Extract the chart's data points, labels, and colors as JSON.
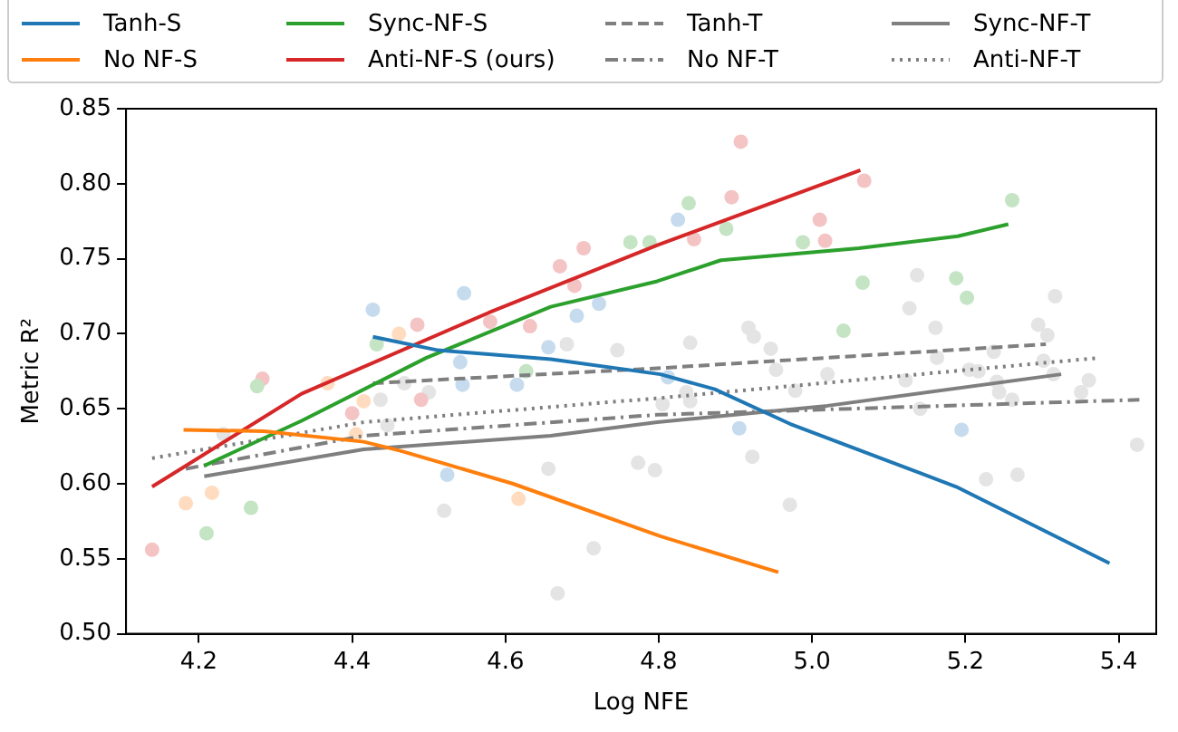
{
  "chart_data": {
    "type": "line",
    "xlabel": "Log NFE",
    "ylabel": "Metric R²",
    "xlim": [
      4.105,
      5.449
    ],
    "ylim": [
      0.5,
      0.85
    ],
    "xticks": [
      4.2,
      4.4,
      4.6,
      4.8,
      {
        "value": 5.0,
        "label": "5.0"
      },
      5.2,
      5.4
    ],
    "yticks": [
      {
        "value": 0.5,
        "label": "0.50"
      },
      {
        "value": 0.55,
        "label": "0.55"
      },
      {
        "value": 0.6,
        "label": "0.60"
      },
      {
        "value": 0.65,
        "label": "0.65"
      },
      {
        "value": 0.7,
        "label": "0.70"
      },
      {
        "value": 0.75,
        "label": "0.75"
      },
      {
        "value": 0.8,
        "label": "0.80"
      },
      {
        "value": 0.85,
        "label": "0.85"
      }
    ],
    "grid": false,
    "legend": "top",
    "series": [
      {
        "type": "scatter",
        "marker": "circle",
        "color": "#c6dcee",
        "x": [
          4.427,
          4.546,
          4.541,
          4.544,
          4.524,
          4.615,
          4.656,
          4.693,
          4.722,
          4.825,
          4.812,
          4.905,
          5.195
        ],
        "values": [
          0.716,
          0.727,
          0.681,
          0.666,
          0.606,
          0.666,
          0.691,
          0.712,
          0.72,
          0.776,
          0.671,
          0.637,
          0.636
        ]
      },
      {
        "type": "scatter",
        "marker": "circle",
        "color": "#ffdcc0",
        "x": [
          4.183,
          4.217,
          4.368,
          4.405,
          4.415,
          4.461,
          4.617
        ],
        "values": [
          0.587,
          0.594,
          0.667,
          0.633,
          0.655,
          0.7,
          0.59
        ]
      },
      {
        "type": "scatter",
        "marker": "circle",
        "color": "#c4e4c4",
        "x": [
          4.21,
          4.268,
          4.276,
          4.432,
          4.627,
          4.763,
          4.788,
          4.839,
          4.888,
          4.988,
          5.261,
          5.066,
          5.188,
          5.202,
          5.041
        ],
        "values": [
          0.567,
          0.584,
          0.665,
          0.693,
          0.675,
          0.761,
          0.761,
          0.787,
          0.77,
          0.761,
          0.789,
          0.734,
          0.737,
          0.724,
          0.702
        ]
      },
      {
        "type": "scatter",
        "marker": "circle",
        "color": "#f4c4c4",
        "x": [
          4.139,
          4.283,
          4.4,
          4.466,
          4.485,
          4.49,
          4.58,
          4.632,
          4.671,
          4.69,
          4.702,
          4.907,
          5.068,
          4.895,
          4.846,
          5.01,
          5.017
        ],
        "values": [
          0.556,
          0.67,
          0.647,
          null,
          0.706,
          0.656,
          0.708,
          0.705,
          0.745,
          0.732,
          0.757,
          0.828,
          0.802,
          0.791,
          0.763,
          0.776,
          0.762
        ]
      },
      {
        "type": "scatter",
        "marker": "circle",
        "color": "#e4e4e4",
        "x": [
          4.232,
          4.437,
          4.446,
          4.468,
          4.5,
          4.52,
          4.656,
          4.68,
          4.668,
          4.715,
          4.746,
          4.773,
          4.795,
          5.137,
          5.127,
          5.317,
          4.917,
          4.924,
          4.841,
          4.946,
          5.161,
          5.295,
          5.307,
          5.163,
          5.237,
          4.953,
          5.02,
          5.205,
          5.217,
          5.302,
          5.315,
          5.361,
          5.122,
          4.978,
          4.836,
          4.841,
          4.805,
          5.241,
          5.244,
          5.261,
          5.351,
          5.141,
          4.922,
          5.227,
          5.268,
          4.971,
          5.424
        ],
        "values": [
          0.633,
          0.656,
          0.639,
          0.667,
          0.661,
          0.582,
          0.61,
          0.693,
          0.527,
          0.557,
          0.689,
          0.614,
          0.609,
          0.739,
          0.717,
          0.725,
          0.704,
          0.698,
          0.694,
          0.69,
          0.704,
          0.706,
          0.699,
          0.684,
          0.688,
          0.676,
          0.673,
          0.676,
          0.675,
          0.682,
          0.673,
          0.669,
          0.669,
          0.662,
          0.661,
          0.655,
          0.653,
          0.668,
          0.661,
          0.656,
          0.661,
          0.65,
          0.618,
          0.603,
          0.606,
          0.586,
          0.626
        ]
      },
      {
        "name": "Tanh-S",
        "color": "#1f77b4",
        "line_style": "solid",
        "x": [
          4.427,
          4.512,
          4.659,
          4.802,
          4.873,
          4.971,
          5.188,
          5.388
        ],
        "values": [
          0.698,
          0.689,
          0.683,
          0.673,
          0.663,
          0.64,
          0.598,
          0.547
        ]
      },
      {
        "name": "No NF-S",
        "color": "#ff7f0e",
        "line_style": "solid",
        "x": [
          4.18,
          4.285,
          4.415,
          4.463,
          4.61,
          4.802,
          4.956
        ],
        "values": [
          0.636,
          0.635,
          0.628,
          0.622,
          0.6,
          0.565,
          0.541
        ]
      },
      {
        "name": "Sync-NF-S",
        "color": "#2ca02c",
        "line_style": "solid",
        "x": [
          4.207,
          4.334,
          4.497,
          4.659,
          4.798,
          4.881,
          5.061,
          5.19,
          5.256
        ],
        "values": [
          0.612,
          0.642,
          0.684,
          0.718,
          0.735,
          0.749,
          0.757,
          0.765,
          0.773
        ]
      },
      {
        "name": "Anti-NF-S (ours)",
        "color": "#d62728",
        "line_style": "solid",
        "x": [
          4.139,
          4.334,
          4.578,
          4.798,
          5.063
        ],
        "values": [
          0.598,
          0.66,
          0.714,
          0.759,
          0.809
        ]
      },
      {
        "name": "Tanh-T",
        "color": "#7f7f7f",
        "line_style": "dashed",
        "x": [
          4.427,
          4.798,
          5.305
        ],
        "values": [
          0.667,
          0.677,
          0.693
        ]
      },
      {
        "name": "No NF-T",
        "color": "#7f7f7f",
        "line_style": "dashdot",
        "x": [
          4.183,
          4.415,
          4.798,
          5.427
        ],
        "values": [
          0.61,
          0.632,
          0.646,
          0.656
        ]
      },
      {
        "name": "Sync-NF-T",
        "color": "#7f7f7f",
        "line_style": "solid",
        "x": [
          4.207,
          4.415,
          4.659,
          4.798,
          5.02,
          5.325
        ],
        "values": [
          0.605,
          0.623,
          0.632,
          0.641,
          0.652,
          0.673
        ]
      },
      {
        "name": "Anti-NF-T",
        "color": "#7f7f7f",
        "line_style": "dotted",
        "x": [
          4.139,
          4.415,
          4.798,
          5.376
        ],
        "values": [
          0.617,
          0.641,
          0.657,
          0.684
        ]
      }
    ]
  }
}
